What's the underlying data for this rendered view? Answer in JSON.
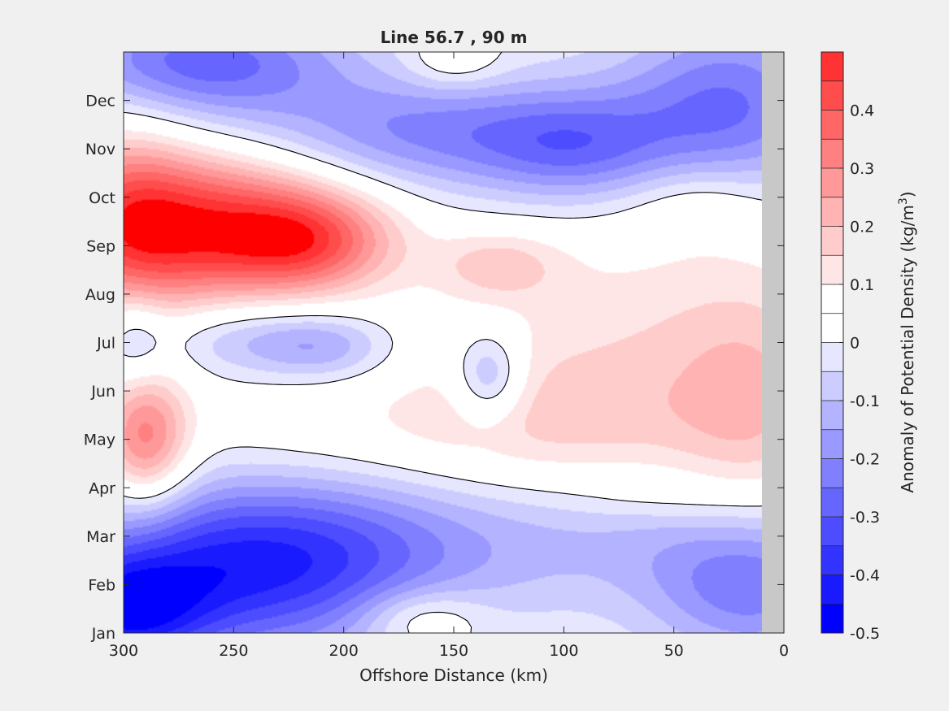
{
  "chart_data": {
    "type": "heatmap",
    "title": "Line 56.7 , 90 m",
    "xlabel": "Offshore Distance (km)",
    "ylabel": "",
    "xlim": [
      300,
      0
    ],
    "x_reversed": true,
    "x_ticks": [
      300,
      250,
      200,
      150,
      100,
      50,
      0
    ],
    "y_ticks": [
      "Jan",
      "Feb",
      "Mar",
      "Apr",
      "May",
      "Jun",
      "Jul",
      "Aug",
      "Sep",
      "Oct",
      "Nov",
      "Dec"
    ],
    "colorbar": {
      "label_prefix": "Anomaly of Potential Density (kg/m",
      "label_exponent": "3",
      "label_suffix": ")",
      "range": [
        -0.5,
        0.5
      ],
      "ticks": [
        "0.4",
        "0.3",
        "0.2",
        "0.1",
        "0",
        "-0.1",
        "-0.2",
        "-0.3",
        "-0.4",
        "-0.5"
      ],
      "tick_values": [
        0.4,
        0.3,
        0.2,
        0.1,
        0,
        -0.1,
        -0.2,
        -0.3,
        -0.4,
        -0.5
      ],
      "levels": [
        -0.5,
        -0.45,
        -0.4,
        -0.35,
        -0.3,
        -0.25,
        -0.2,
        -0.15,
        -0.1,
        -0.05,
        0,
        0.05,
        0.1,
        0.15,
        0.2,
        0.25,
        0.3,
        0.35,
        0.4,
        0.45,
        0.5
      ],
      "colors": [
        "#0000ff",
        "#1a1aff",
        "#3333ff",
        "#4d4dff",
        "#6666ff",
        "#8080ff",
        "#9999ff",
        "#b3b3ff",
        "#ccccff",
        "#e6e6ff",
        "#ffffff",
        "#ffffff",
        "#ffe6e6",
        "#ffcccc",
        "#ffb3b3",
        "#ff9999",
        "#ff8080",
        "#ff6666",
        "#ff4d4d",
        "#ff3333",
        "#ff1a1a",
        "#ff0000"
      ]
    },
    "land_mask_km": [
      0,
      10
    ],
    "land_color": "#c8c8c8",
    "zero_contour": true,
    "blobs": [
      {
        "x": 262,
        "y": 8.4,
        "sx": 45,
        "sy": 1.15,
        "a": 0.46
      },
      {
        "x": 215,
        "y": 8.1,
        "sx": 26,
        "sy": 0.7,
        "a": 0.25
      },
      {
        "x": 300,
        "y": 8.6,
        "sx": 22,
        "sy": 1.5,
        "a": 0.2
      },
      {
        "x": 130,
        "y": 7.6,
        "sx": 20,
        "sy": 0.5,
        "a": 0.13
      },
      {
        "x": 60,
        "y": 5.6,
        "sx": 75,
        "sy": 2.2,
        "a": 0.14
      },
      {
        "x": 15,
        "y": 4.5,
        "sx": 25,
        "sy": 1.8,
        "a": 0.11
      },
      {
        "x": 290,
        "y": 4.0,
        "sx": 14,
        "sy": 1.0,
        "a": 0.3
      },
      {
        "x": 185,
        "y": 4.3,
        "sx": 85,
        "sy": 0.9,
        "a": 0.06
      },
      {
        "x": 110,
        "y": 4.2,
        "sx": 50,
        "sy": 1.0,
        "a": 0.05
      },
      {
        "x": 245,
        "y": 6.1,
        "sx": 30,
        "sy": 0.55,
        "a": -0.13
      },
      {
        "x": 208,
        "y": 5.9,
        "sx": 22,
        "sy": 0.5,
        "a": -0.14
      },
      {
        "x": 295,
        "y": 6.1,
        "sx": 10,
        "sy": 0.7,
        "a": -0.12
      },
      {
        "x": 134,
        "y": 5.3,
        "sx": 11,
        "sy": 0.65,
        "a": -0.2
      },
      {
        "x": 250,
        "y": 1.1,
        "sx": 60,
        "sy": 1.2,
        "a": -0.33
      },
      {
        "x": 300,
        "y": 0.4,
        "sx": 25,
        "sy": 0.8,
        "a": -0.3
      },
      {
        "x": 215,
        "y": 2.0,
        "sx": 60,
        "sy": 1.0,
        "a": -0.15
      },
      {
        "x": 70,
        "y": 2.0,
        "sx": 65,
        "sy": 1.0,
        "a": -0.12
      },
      {
        "x": 15,
        "y": 0.9,
        "sx": 32,
        "sy": 1.0,
        "a": -0.22
      },
      {
        "x": 165,
        "y": 0.3,
        "sx": 20,
        "sy": 0.45,
        "a": 0.14
      },
      {
        "x": 265,
        "y": 11.8,
        "sx": 45,
        "sy": 0.8,
        "a": -0.28
      },
      {
        "x": 160,
        "y": 10.4,
        "sx": 60,
        "sy": 0.8,
        "a": -0.18
      },
      {
        "x": 95,
        "y": 10.0,
        "sx": 30,
        "sy": 0.8,
        "a": -0.16
      },
      {
        "x": 25,
        "y": 11.0,
        "sx": 35,
        "sy": 1.2,
        "a": -0.24
      },
      {
        "x": 150,
        "y": 11.8,
        "sx": 15,
        "sy": 0.4,
        "a": 0.1
      },
      {
        "x": 140,
        "y": 9.9,
        "sx": 120,
        "sy": 0.85,
        "a": -0.05
      },
      {
        "x": 40,
        "y": 8.9,
        "sx": 22,
        "sy": 0.6,
        "a": 0.07
      },
      {
        "x": 60,
        "y": 2.7,
        "sx": 25,
        "sy": 0.3,
        "a": 0.03
      }
    ]
  }
}
